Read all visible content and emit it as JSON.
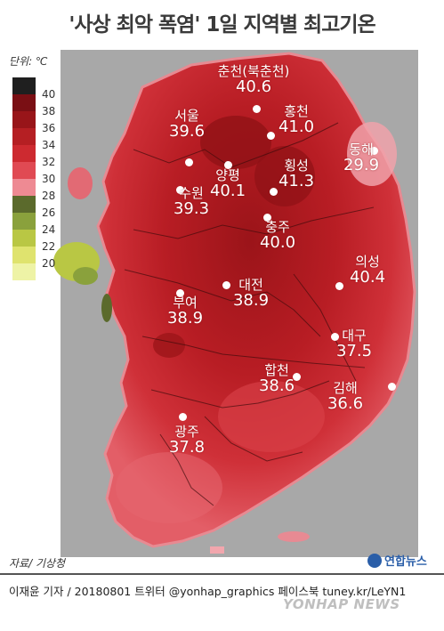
{
  "title": "'사상 최악 폭염' 1일 지역별 최고기온",
  "legend": {
    "unit": "단위: ℃",
    "ticks": [
      "40",
      "38",
      "36",
      "34",
      "32",
      "30",
      "28",
      "26",
      "24",
      "22",
      "20"
    ],
    "colors": [
      "#1f1f1f",
      "#7a0f14",
      "#981519",
      "#b51f23",
      "#cd2a30",
      "#e04a53",
      "#ee8a93",
      "#5b6a2c",
      "#8aa13c",
      "#b9c744",
      "#dfe36e",
      "#eef3a6"
    ]
  },
  "cities": [
    {
      "name": "춘천(북춘천)",
      "temp": "40.6"
    },
    {
      "name": "홍천",
      "temp": "41.0"
    },
    {
      "name": "서울",
      "temp": "39.6"
    },
    {
      "name": "동해",
      "temp": "29.9"
    },
    {
      "name": "양평",
      "temp": "40.1"
    },
    {
      "name": "횡성",
      "temp": "41.3"
    },
    {
      "name": "수원",
      "temp": "39.3"
    },
    {
      "name": "충주",
      "temp": "40.0"
    },
    {
      "name": "의성",
      "temp": "40.4"
    },
    {
      "name": "대전",
      "temp": "38.9"
    },
    {
      "name": "부여",
      "temp": "38.9"
    },
    {
      "name": "대구",
      "temp": "37.5"
    },
    {
      "name": "합천",
      "temp": "38.6"
    },
    {
      "name": "김해",
      "temp": "36.6"
    },
    {
      "name": "광주",
      "temp": "37.8"
    }
  ],
  "source": "자료/ 기상청",
  "logo": "연합뉴스",
  "credit": "이재윤 기자 / 20180801   트위터 @yonhap_graphics  페이스북 tuney.kr/LeYN1",
  "watermark": "YONHAP NEWS",
  "colors": {
    "map_bg": "#a7a7a7",
    "land_hot": "#c4232b",
    "land_core": "#a3161c",
    "land_edge": "#e87b84",
    "land_cool": "#f2a6ad"
  }
}
